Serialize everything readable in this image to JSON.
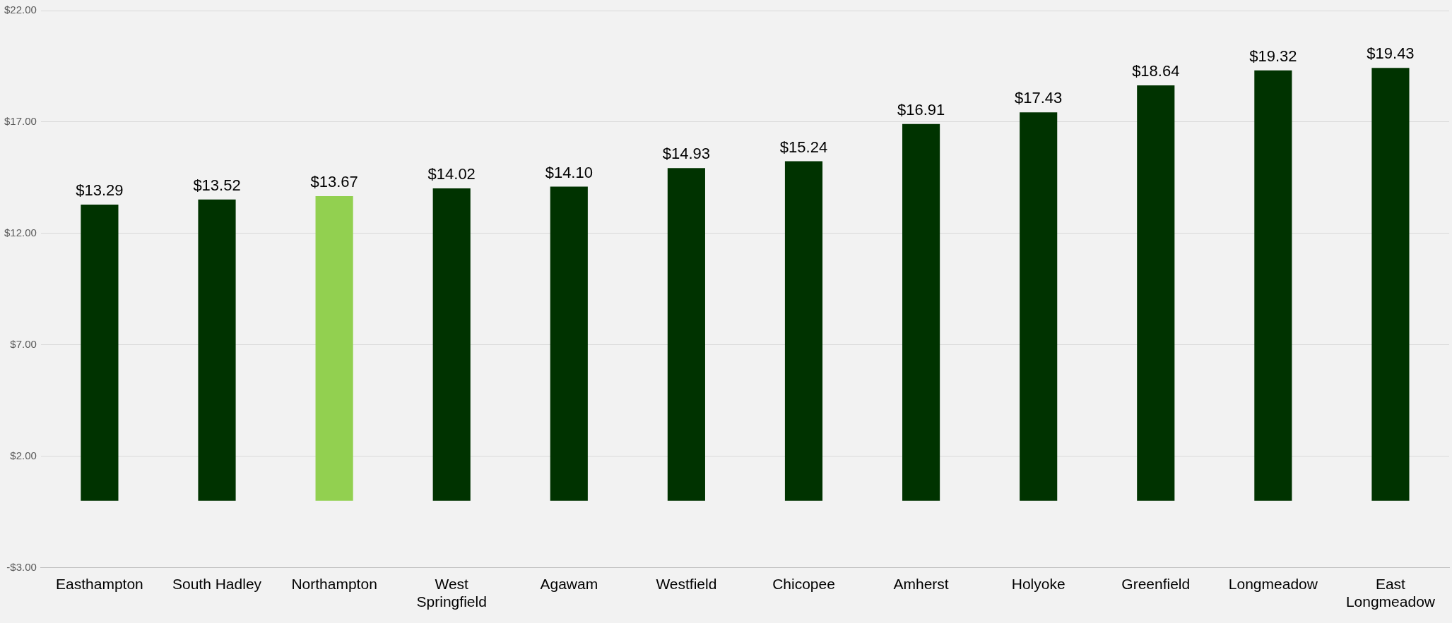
{
  "chart_data": {
    "type": "bar",
    "categories": [
      "Easthampton",
      "South Hadley",
      "Northampton",
      "West Springfield",
      "Agawam",
      "Westfield",
      "Chicopee",
      "Amherst",
      "Holyoke",
      "Greenfield",
      "Longmeadow",
      "East Longmeadow"
    ],
    "values": [
      13.29,
      13.52,
      13.67,
      14.02,
      14.1,
      14.93,
      15.24,
      16.91,
      17.43,
      18.64,
      19.32,
      19.43
    ],
    "value_labels": [
      "$13.29",
      "$13.52",
      "$13.67",
      "$14.02",
      "$14.10",
      "$14.93",
      "$15.24",
      "$16.91",
      "$17.43",
      "$18.64",
      "$19.32",
      "$19.43"
    ],
    "colors": [
      "#003300",
      "#003300",
      "#92d050",
      "#003300",
      "#003300",
      "#003300",
      "#003300",
      "#003300",
      "#003300",
      "#003300",
      "#003300",
      "#003300"
    ],
    "ylim": [
      -3,
      22
    ],
    "yticks": [
      {
        "value": -3,
        "label": "-$3.00"
      },
      {
        "value": 2,
        "label": "$2.00"
      },
      {
        "value": 7,
        "label": "$7.00"
      },
      {
        "value": 12,
        "label": "$12.00"
      },
      {
        "value": 17,
        "label": "$17.00"
      },
      {
        "value": 22,
        "label": "$22.00"
      }
    ],
    "grid": "y",
    "legend": false
  }
}
